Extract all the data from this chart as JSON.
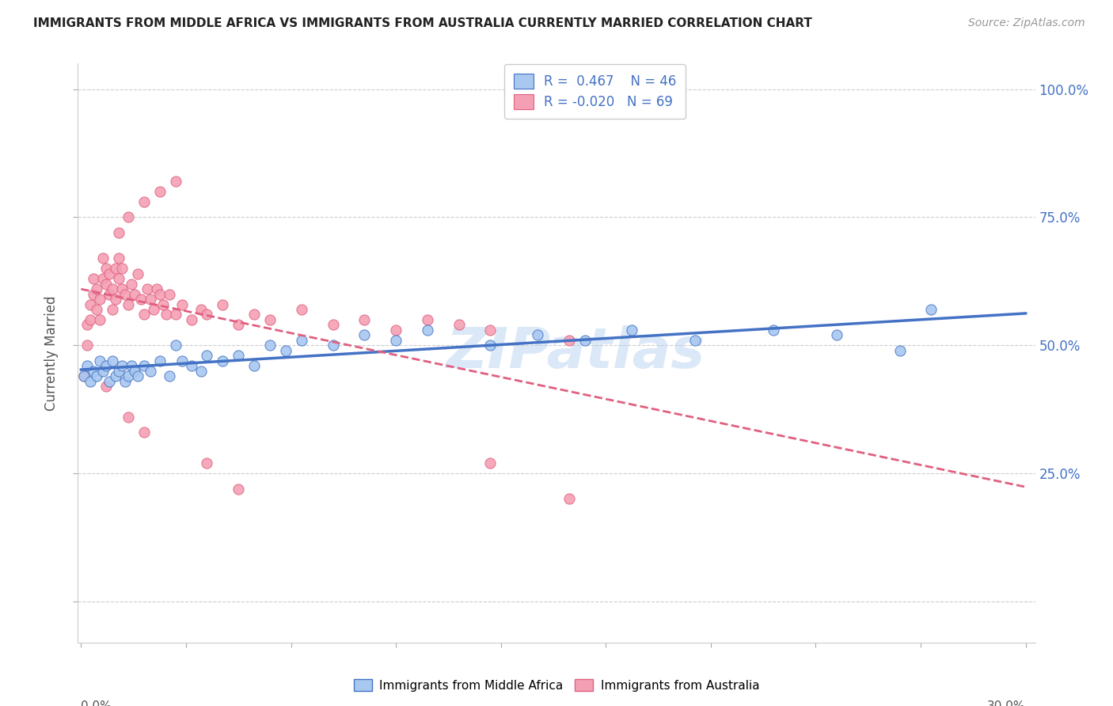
{
  "title": "IMMIGRANTS FROM MIDDLE AFRICA VS IMMIGRANTS FROM AUSTRALIA CURRENTLY MARRIED CORRELATION CHART",
  "source": "Source: ZipAtlas.com",
  "ylabel": "Currently Married",
  "color_blue": "#A8C8F0",
  "color_pink": "#F4A0B4",
  "line_blue": "#4472C4",
  "line_pink": "#E06080",
  "watermark": "ZIPatlas",
  "legend_label1": "R =  0.467    N = 46",
  "legend_label2": "R = -0.020   N = 69",
  "legend_color": "#4472C4",
  "blue_x": [
    0.001,
    0.002,
    0.003,
    0.004,
    0.005,
    0.006,
    0.007,
    0.008,
    0.009,
    0.01,
    0.011,
    0.012,
    0.013,
    0.014,
    0.015,
    0.016,
    0.017,
    0.018,
    0.02,
    0.022,
    0.025,
    0.028,
    0.03,
    0.032,
    0.035,
    0.038,
    0.04,
    0.045,
    0.05,
    0.055,
    0.06,
    0.065,
    0.07,
    0.08,
    0.09,
    0.1,
    0.11,
    0.13,
    0.145,
    0.16,
    0.175,
    0.195,
    0.22,
    0.24,
    0.26,
    0.27
  ],
  "blue_y": [
    0.44,
    0.46,
    0.43,
    0.45,
    0.44,
    0.47,
    0.45,
    0.46,
    0.43,
    0.47,
    0.44,
    0.45,
    0.46,
    0.43,
    0.44,
    0.46,
    0.45,
    0.44,
    0.46,
    0.45,
    0.47,
    0.44,
    0.5,
    0.47,
    0.46,
    0.45,
    0.48,
    0.47,
    0.48,
    0.46,
    0.5,
    0.49,
    0.51,
    0.5,
    0.52,
    0.51,
    0.53,
    0.5,
    0.52,
    0.51,
    0.53,
    0.51,
    0.53,
    0.52,
    0.49,
    0.57
  ],
  "pink_x": [
    0.001,
    0.002,
    0.002,
    0.003,
    0.003,
    0.004,
    0.004,
    0.005,
    0.005,
    0.006,
    0.006,
    0.007,
    0.007,
    0.008,
    0.008,
    0.009,
    0.009,
    0.01,
    0.01,
    0.011,
    0.011,
    0.012,
    0.012,
    0.013,
    0.013,
    0.014,
    0.015,
    0.016,
    0.017,
    0.018,
    0.019,
    0.02,
    0.021,
    0.022,
    0.023,
    0.024,
    0.025,
    0.026,
    0.027,
    0.028,
    0.03,
    0.032,
    0.035,
    0.038,
    0.04,
    0.045,
    0.05,
    0.055,
    0.06,
    0.07,
    0.08,
    0.09,
    0.1,
    0.11,
    0.12,
    0.012,
    0.015,
    0.02,
    0.025,
    0.03,
    0.13,
    0.155,
    0.13,
    0.155,
    0.04,
    0.05,
    0.015,
    0.02,
    0.008
  ],
  "pink_y": [
    0.44,
    0.5,
    0.54,
    0.55,
    0.58,
    0.6,
    0.63,
    0.57,
    0.61,
    0.55,
    0.59,
    0.63,
    0.67,
    0.62,
    0.65,
    0.6,
    0.64,
    0.57,
    0.61,
    0.65,
    0.59,
    0.63,
    0.67,
    0.61,
    0.65,
    0.6,
    0.58,
    0.62,
    0.6,
    0.64,
    0.59,
    0.56,
    0.61,
    0.59,
    0.57,
    0.61,
    0.6,
    0.58,
    0.56,
    0.6,
    0.56,
    0.58,
    0.55,
    0.57,
    0.56,
    0.58,
    0.54,
    0.56,
    0.55,
    0.57,
    0.54,
    0.55,
    0.53,
    0.55,
    0.54,
    0.72,
    0.75,
    0.78,
    0.8,
    0.82,
    0.27,
    0.2,
    0.53,
    0.51,
    0.27,
    0.22,
    0.36,
    0.33,
    0.42
  ],
  "xlim_min": 0.0,
  "xlim_max": 0.3,
  "ylim_min": 0.0,
  "ylim_max": 1.05,
  "yticks": [
    0.0,
    0.25,
    0.5,
    0.75,
    1.0
  ],
  "ytick_labels_right": [
    "",
    "25.0%",
    "50.0%",
    "75.0%",
    "100.0%"
  ]
}
